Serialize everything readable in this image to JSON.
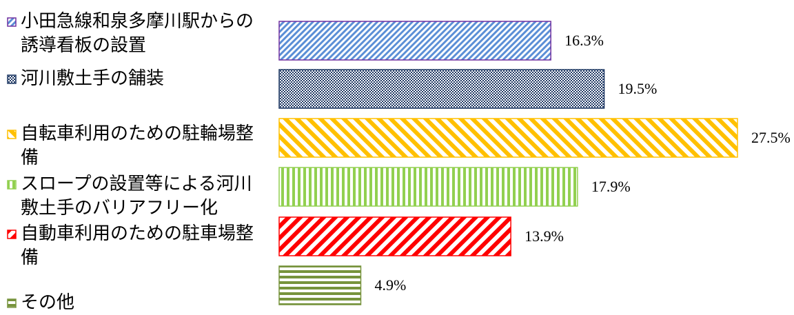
{
  "chart_data": {
    "type": "bar",
    "orientation": "horizontal",
    "categories": [
      "小田急線和泉多摩川駅からの誘導看板の設置",
      "河川敷土手の舗装",
      "自転車利用のための駐輪場整備",
      "スロープの設置等による河川敷土手のバリアフリー化",
      "自動車利用のための駐車場整備",
      "その他"
    ],
    "values": [
      16.3,
      19.5,
      27.5,
      17.9,
      13.9,
      4.9
    ],
    "value_labels": [
      "16.3%",
      "19.5%",
      "27.5%",
      "17.9%",
      "13.9%",
      "4.9%"
    ],
    "colors": [
      "#5b8fd6",
      "#1f3864",
      "#ffc000",
      "#92d050",
      "#ff0000",
      "#77933c"
    ],
    "border_colors": [
      "#7030a0",
      "#1f3864",
      "#ffc000",
      "#92d050",
      "#ff0000",
      "#77933c"
    ],
    "patterns": [
      "diagonal-up-fine",
      "checker",
      "diagonal-down-wide",
      "vertical",
      "diagonal-up-wide",
      "horizontal"
    ]
  }
}
